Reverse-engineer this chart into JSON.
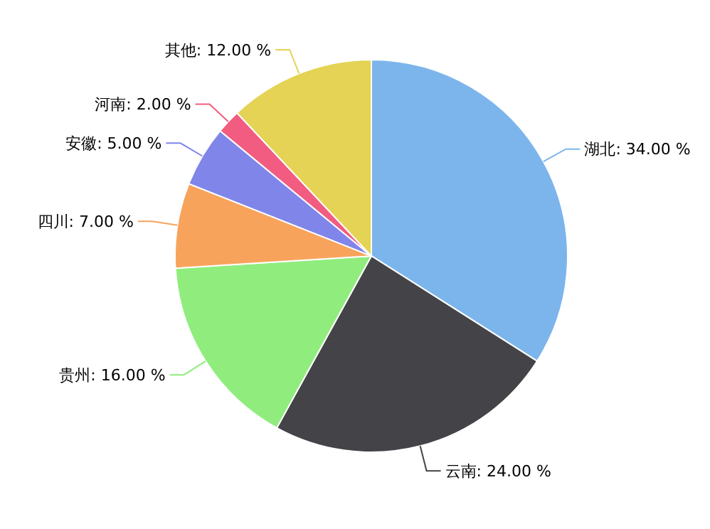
{
  "chart_data": {
    "type": "pie",
    "categories": [
      "湖北",
      "云南",
      "贵州",
      "四川",
      "安徽",
      "河南",
      "其他"
    ],
    "values": [
      34,
      24,
      16,
      7,
      5,
      2,
      12
    ],
    "value_labels": [
      "34.00 %",
      "24.00 %",
      "16.00 %",
      "7.00 %",
      "5.00 %",
      "2.00 %",
      "12.00 %"
    ],
    "colors": [
      "#7cb5ec",
      "#434348",
      "#90ed7d",
      "#f7a35c",
      "#8085e9",
      "#f15c80",
      "#e4d354"
    ]
  }
}
